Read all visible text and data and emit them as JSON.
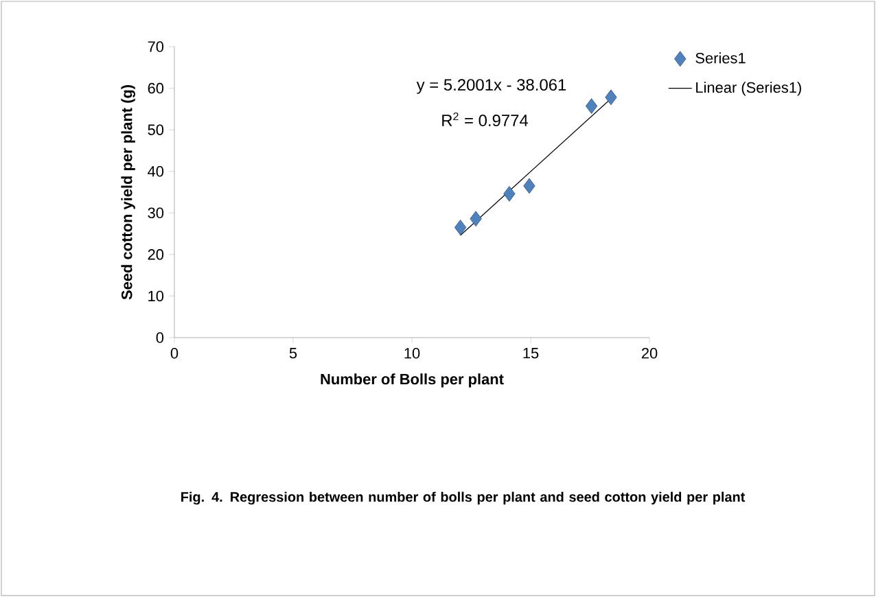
{
  "chart_data": {
    "type": "scatter",
    "xlabel": "Number of Bolls per plant",
    "ylabel": "Seed cotton yield per plant (g)",
    "xlim": [
      0,
      20
    ],
    "xticks": [
      0,
      5,
      10,
      15,
      20
    ],
    "ylim": [
      0,
      70
    ],
    "yticks": [
      0,
      10,
      20,
      30,
      40,
      50,
      60,
      70
    ],
    "series": [
      {
        "name": "Series1",
        "color": "#4f81bd",
        "marker": "diamond",
        "x": [
          12.04,
          12.69,
          14.1,
          14.94,
          17.56,
          18.38
        ],
        "values": [
          26.5,
          28.6,
          34.6,
          36.5,
          55.7,
          57.8
        ]
      },
      {
        "name": "Linear (Series1)",
        "type": "line",
        "color": "#000000",
        "marker": "none",
        "line_style": "solid",
        "x": [
          12.04,
          18.38
        ],
        "values": [
          24.6,
          57.5
        ]
      }
    ],
    "annotations": [
      "y = 5.2001x - 38.061",
      "R$^{2}$ = 0.9774",
      "Fig. 4.  Regression between number of bolls per plant  and seed cotton yield per plant"
    ],
    "legend": "right",
    "grid": false
  }
}
